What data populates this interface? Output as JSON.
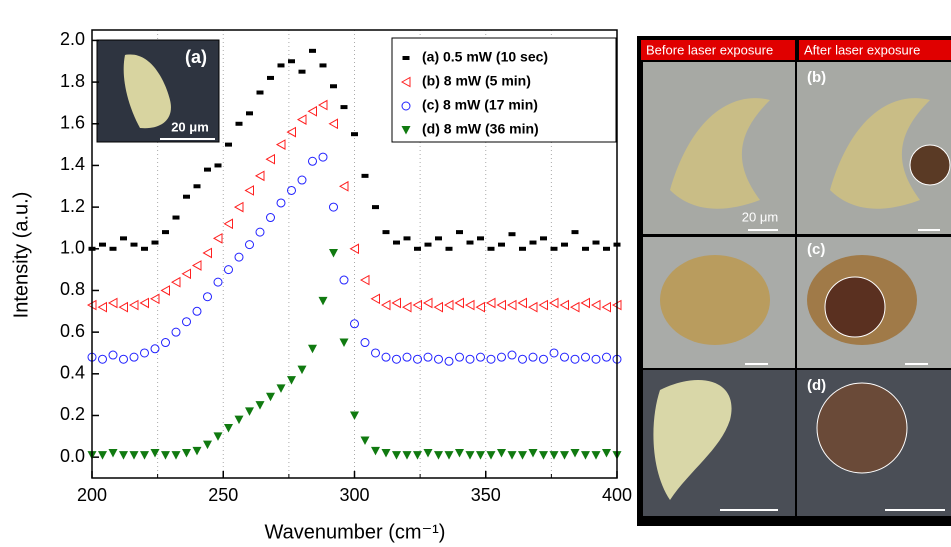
{
  "chart_data": {
    "type": "scatter",
    "xlabel": "Wavenumber (cm⁻¹)",
    "ylabel": "Intensity (a.u.)",
    "xlim": [
      200,
      400
    ],
    "ylim": [
      -0.1,
      2.05
    ],
    "xticks": [
      200,
      250,
      300,
      350,
      400
    ],
    "xminor": [
      225,
      275,
      325,
      375
    ],
    "yticks": [
      {
        "value": 0,
        "label": "0.0"
      },
      0.2,
      0.4,
      0.6,
      0.8,
      {
        "value": 1,
        "label": "1.0"
      },
      1.2,
      1.4,
      1.6,
      1.8,
      {
        "value": 2,
        "label": "2.0"
      }
    ],
    "grid": true,
    "legend": "upper right",
    "annotations": [
      "(a)",
      "20 μm"
    ],
    "x": [
      200,
      204,
      208,
      212,
      216,
      220,
      224,
      228,
      232,
      236,
      240,
      244,
      248,
      252,
      256,
      260,
      264,
      268,
      272,
      276,
      280,
      284,
      288,
      292,
      296,
      300,
      304,
      308,
      312,
      316,
      320,
      324,
      328,
      332,
      336,
      340,
      344,
      348,
      352,
      356,
      360,
      364,
      368,
      372,
      376,
      380,
      384,
      388,
      392,
      396,
      400
    ],
    "series": [
      {
        "name": "(a) 0.5 mW (10 sec)",
        "color": "#000000",
        "marker": "dash",
        "values": [
          1.0,
          1.02,
          1.0,
          1.05,
          1.02,
          1.0,
          1.03,
          1.08,
          1.15,
          1.25,
          1.3,
          1.38,
          1.4,
          1.5,
          1.6,
          1.65,
          1.75,
          1.82,
          1.88,
          1.9,
          1.85,
          1.95,
          1.88,
          1.78,
          1.68,
          1.55,
          1.35,
          1.2,
          1.08,
          1.03,
          1.05,
          1.0,
          1.02,
          1.05,
          1.0,
          1.08,
          1.03,
          1.05,
          1.0,
          1.02,
          1.07,
          1.0,
          1.03,
          1.05,
          1.0,
          1.02,
          1.08,
          1.0,
          1.03,
          1.0,
          1.02
        ]
      },
      {
        "name": "(b) 8 mW (5 min)",
        "color": "#ff2020",
        "marker": "triangle-left",
        "values": [
          0.73,
          0.72,
          0.74,
          0.72,
          0.73,
          0.74,
          0.76,
          0.8,
          0.84,
          0.88,
          0.92,
          0.98,
          1.05,
          1.12,
          1.2,
          1.28,
          1.35,
          1.43,
          1.5,
          1.56,
          1.62,
          1.66,
          1.69,
          1.6,
          1.3,
          1.0,
          0.85,
          0.76,
          0.73,
          0.74,
          0.72,
          0.73,
          0.74,
          0.72,
          0.73,
          0.74,
          0.73,
          0.72,
          0.74,
          0.73,
          0.73,
          0.74,
          0.72,
          0.73,
          0.74,
          0.73,
          0.72,
          0.74,
          0.73,
          0.72,
          0.73
        ]
      },
      {
        "name": "(c) 8 mW (17 min)",
        "color": "#2020ff",
        "marker": "circle",
        "values": [
          0.48,
          0.47,
          0.49,
          0.47,
          0.48,
          0.5,
          0.52,
          0.55,
          0.6,
          0.65,
          0.7,
          0.77,
          0.84,
          0.9,
          0.96,
          1.02,
          1.08,
          1.15,
          1.22,
          1.28,
          1.33,
          1.42,
          1.44,
          1.2,
          0.85,
          0.64,
          0.55,
          0.5,
          0.48,
          0.47,
          0.48,
          0.47,
          0.48,
          0.47,
          0.46,
          0.48,
          0.47,
          0.48,
          0.47,
          0.48,
          0.49,
          0.47,
          0.48,
          0.47,
          0.5,
          0.48,
          0.47,
          0.48,
          0.47,
          0.48,
          0.47
        ]
      },
      {
        "name": "(d) 8 mW (36 min)",
        "color": "#107a10",
        "marker": "triangle-down",
        "values": [
          0.01,
          0.01,
          0.02,
          0.01,
          0.01,
          0.01,
          0.02,
          0.01,
          0.01,
          0.02,
          0.03,
          0.06,
          0.1,
          0.14,
          0.18,
          0.22,
          0.25,
          0.29,
          0.33,
          0.37,
          0.42,
          0.52,
          0.75,
          0.98,
          0.55,
          0.2,
          0.08,
          0.03,
          0.02,
          0.01,
          0.01,
          0.01,
          0.02,
          0.01,
          0.01,
          0.02,
          0.01,
          0.01,
          0.01,
          0.02,
          0.01,
          0.01,
          0.02,
          0.01,
          0.01,
          0.01,
          0.02,
          0.01,
          0.01,
          0.02,
          0.01
        ]
      }
    ]
  },
  "micrographs": {
    "headers": [
      "Before laser exposure",
      "After laser exposure"
    ],
    "labels": [
      "(b)",
      "(c)",
      "(d)"
    ],
    "scale": "20 μm"
  }
}
